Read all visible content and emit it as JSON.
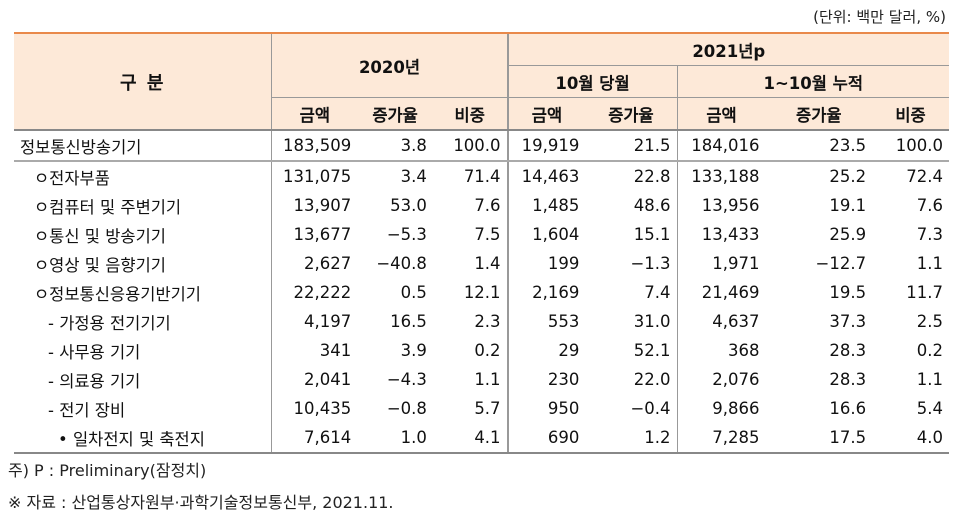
{
  "unit_note": "(단위: 백만 달러, %)",
  "header": {
    "category": "구  분",
    "year2020": "2020년",
    "year2021": "2021년p",
    "oct_month": "10월 당월",
    "cumulative": "1~10월 누적",
    "cols": [
      "금액",
      "증가율",
      "비중",
      "금액",
      "증가율",
      "금액",
      "증가율",
      "비중"
    ]
  },
  "rows": [
    {
      "label": "정보통신방송기기",
      "values": [
        "183,509",
        "3.8",
        "100.0",
        "19,919",
        "21.5",
        "184,016",
        "23.5",
        "100.0"
      ]
    },
    {
      "label": "ㅇ전자부품",
      "values": [
        "131,075",
        "3.4",
        "71.4",
        "14,463",
        "22.8",
        "133,188",
        "25.2",
        "72.4"
      ]
    },
    {
      "label": "ㅇ컴퓨터 및 주변기기",
      "values": [
        "13,907",
        "53.0",
        "7.6",
        "1,485",
        "48.6",
        "13,956",
        "19.1",
        "7.6"
      ]
    },
    {
      "label": "ㅇ통신 및 방송기기",
      "values": [
        "13,677",
        "−5.3",
        "7.5",
        "1,604",
        "15.1",
        "13,433",
        "25.9",
        "7.3"
      ]
    },
    {
      "label": "ㅇ영상 및 음향기기",
      "values": [
        "2,627",
        "−40.8",
        "1.4",
        "199",
        "−1.3",
        "1,971",
        "−12.7",
        "1.1"
      ]
    },
    {
      "label": "ㅇ정보통신응용기반기기",
      "values": [
        "22,222",
        "0.5",
        "12.1",
        "2,169",
        "7.4",
        "21,469",
        "19.5",
        "11.7"
      ]
    },
    {
      "label": "- 가정용 전기기기",
      "values": [
        "4,197",
        "16.5",
        "2.3",
        "553",
        "31.0",
        "4,637",
        "37.3",
        "2.5"
      ]
    },
    {
      "label": "- 사무용 기기",
      "values": [
        "341",
        "3.9",
        "0.2",
        "29",
        "52.1",
        "368",
        "28.3",
        "0.2"
      ]
    },
    {
      "label": "- 의료용 기기",
      "values": [
        "2,041",
        "−4.3",
        "1.1",
        "230",
        "22.0",
        "2,076",
        "28.3",
        "1.1"
      ]
    },
    {
      "label": "- 전기 장비",
      "values": [
        "10,435",
        "−0.8",
        "5.7",
        "950",
        "−0.4",
        "9,866",
        "16.6",
        "5.4"
      ]
    },
    {
      "label": "• 일차전지 및 축전지",
      "values": [
        "7,614",
        "1.0",
        "4.1",
        "690",
        "1.2",
        "7,285",
        "17.5",
        "4.0"
      ]
    }
  ],
  "notes": {
    "note1": "주) P : Preliminary(잠정치)",
    "note2": "※ 자료 : 산업통상자원부·과학기술정보통신부, 2021.11."
  }
}
